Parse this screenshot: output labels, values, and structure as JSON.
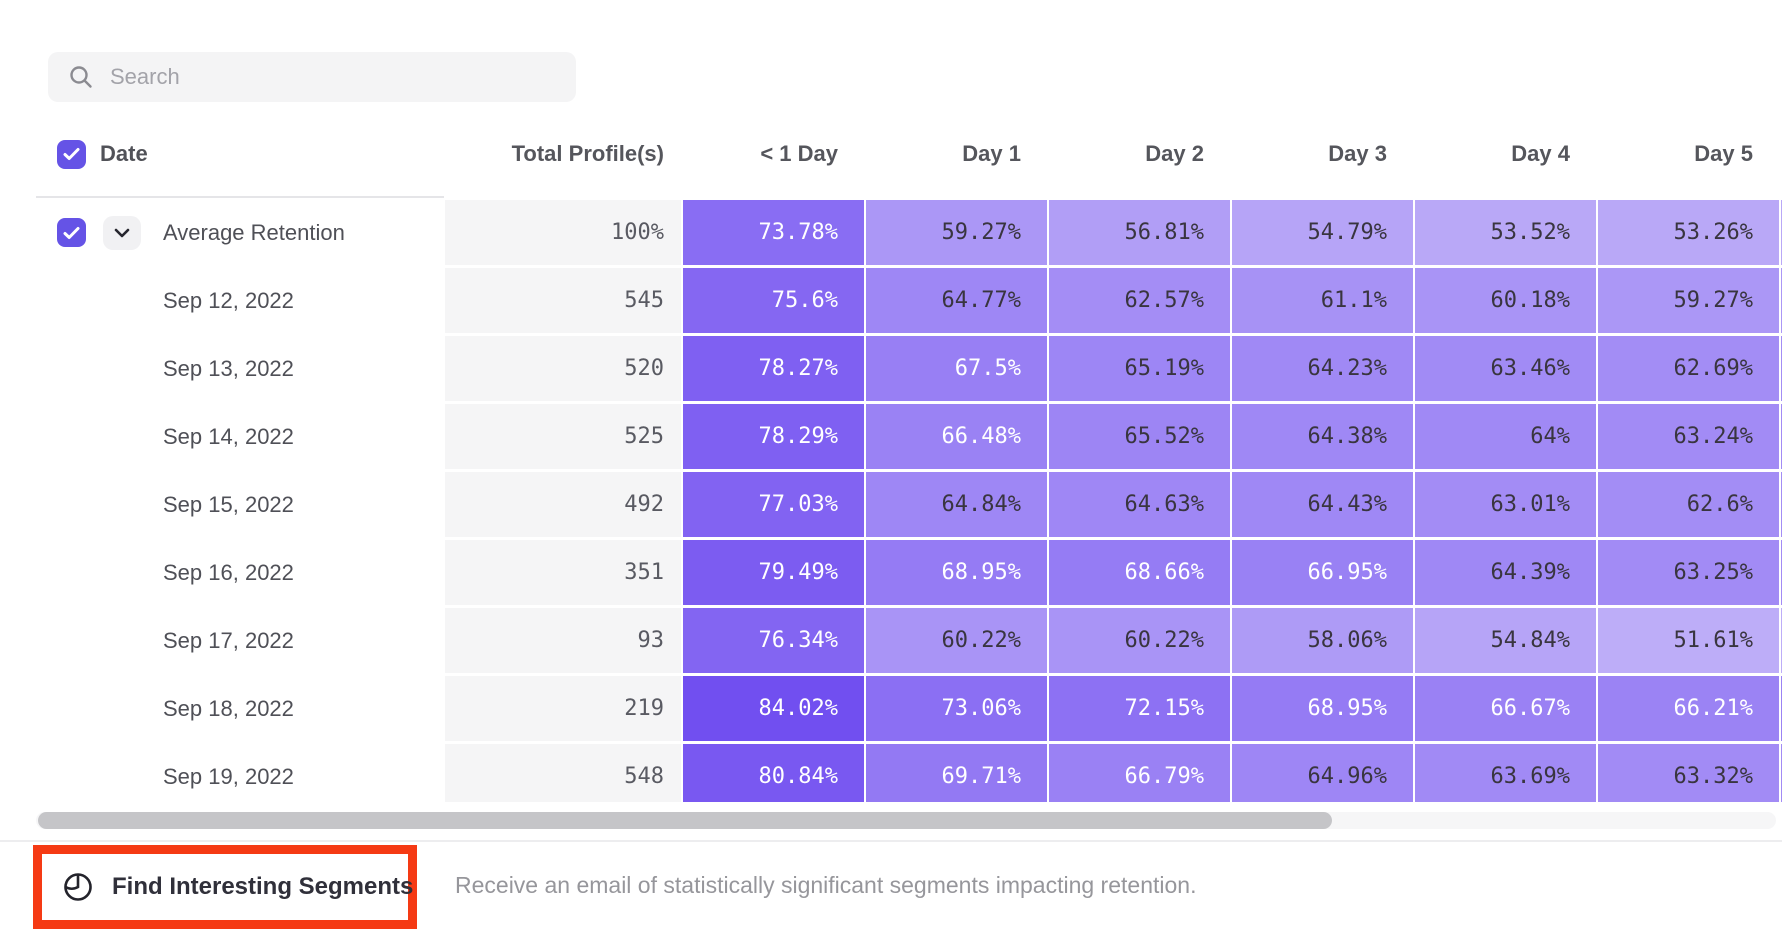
{
  "search": {
    "placeholder": "Search"
  },
  "table": {
    "select_all_checked": true,
    "date_column_header": "Date",
    "total_column_header": "Total Profile(s)",
    "day_column_headers": [
      "< 1 Day",
      "Day 1",
      "Day 2",
      "Day 3",
      "Day 4",
      "Day 5"
    ],
    "rows": [
      {
        "label": "Average Retention",
        "checkbox": true,
        "checked": true,
        "expandable": true,
        "total": "100%",
        "values": [
          73.78,
          59.27,
          56.81,
          54.79,
          53.52,
          53.26
        ]
      },
      {
        "label": "Sep 12, 2022",
        "total": "545",
        "values": [
          75.6,
          64.77,
          62.57,
          61.1,
          60.18,
          59.27
        ]
      },
      {
        "label": "Sep 13, 2022",
        "total": "520",
        "values": [
          78.27,
          67.5,
          65.19,
          64.23,
          63.46,
          62.69
        ]
      },
      {
        "label": "Sep 14, 2022",
        "total": "525",
        "values": [
          78.29,
          66.48,
          65.52,
          64.38,
          64,
          63.24
        ]
      },
      {
        "label": "Sep 15, 2022",
        "total": "492",
        "values": [
          77.03,
          64.84,
          64.63,
          64.43,
          63.01,
          62.6
        ]
      },
      {
        "label": "Sep 16, 2022",
        "total": "351",
        "values": [
          79.49,
          68.95,
          68.66,
          66.95,
          64.39,
          63.25
        ]
      },
      {
        "label": "Sep 17, 2022",
        "total": "93",
        "values": [
          76.34,
          60.22,
          60.22,
          58.06,
          54.84,
          51.61
        ]
      },
      {
        "label": "Sep 18, 2022",
        "total": "219",
        "values": [
          84.02,
          73.06,
          72.15,
          68.95,
          66.67,
          66.21
        ]
      },
      {
        "label": "Sep 19, 2022",
        "total": "548",
        "values": [
          80.84,
          69.71,
          66.79,
          64.96,
          63.69,
          63.32
        ]
      }
    ]
  },
  "heatmap": {
    "light_color": "#c1b2f8",
    "dark_color": "#6f4cf0",
    "domain": [
      50,
      85
    ],
    "white_text_threshold": 66,
    "dark_text_color": "#39353f",
    "white_text_color": "#ffffff",
    "checkbox_color": "#6553e6",
    "total_column_bg": "#f5f5f6"
  },
  "footer": {
    "button_label": "Find Interesting Segments",
    "description": "Receive an email of statistically significant segments impacting retention.",
    "annotation_color": "#f53a14"
  }
}
